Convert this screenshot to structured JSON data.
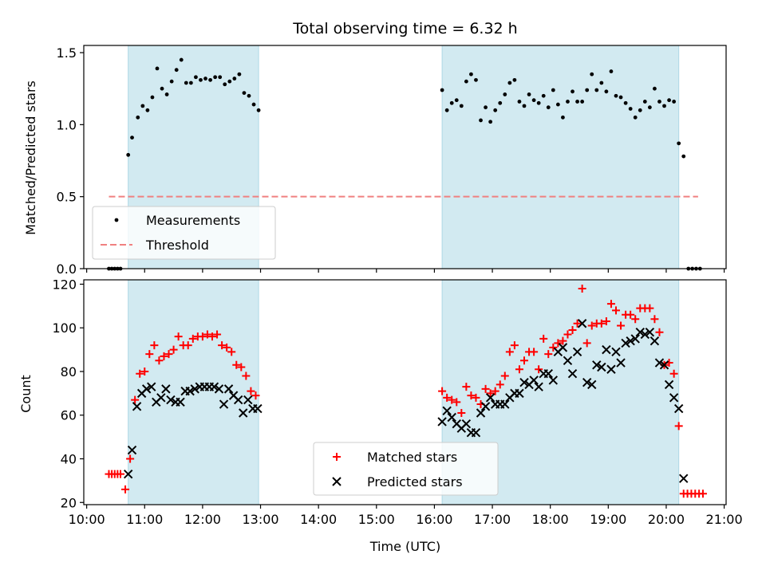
{
  "title": "Total observing time = 6.32 h",
  "colors": {
    "shade": "#add8e6",
    "measurement": "#000000",
    "threshold": "#f08080",
    "matched": "#ff0000",
    "predicted": "#000000"
  },
  "chart_data": [
    {
      "type": "scatter",
      "ylabel": "Matched/Predicted stars",
      "ylim": [
        0,
        1.55
      ],
      "yticks": [
        "0.0",
        "0.5",
        "1.0",
        "1.5"
      ],
      "legend": {
        "placement": "lower-left",
        "entries": [
          "Measurements",
          "Threshold"
        ]
      },
      "shaded_intervals": [
        [
          "10:43",
          "12:58"
        ],
        [
          "16:08",
          "20:13"
        ]
      ],
      "threshold": {
        "name": "Threshold",
        "y": 0.5,
        "x_range": [
          "10:23",
          "20:33"
        ]
      },
      "series": [
        {
          "name": "Measurements",
          "marker": "dot",
          "points": [
            [
              "10:23",
              0
            ],
            [
              "10:26",
              0
            ],
            [
              "10:29",
              0
            ],
            [
              "10:32",
              0
            ],
            [
              "10:35",
              0
            ],
            [
              "10:43",
              0.79
            ],
            [
              "10:47",
              0.91
            ],
            [
              "10:53",
              1.05
            ],
            [
              "10:58",
              1.13
            ],
            [
              "11:03",
              1.1
            ],
            [
              "11:08",
              1.19
            ],
            [
              "11:13",
              1.39
            ],
            [
              "11:18",
              1.25
            ],
            [
              "11:23",
              1.21
            ],
            [
              "11:28",
              1.3
            ],
            [
              "11:33",
              1.38
            ],
            [
              "11:38",
              1.45
            ],
            [
              "11:43",
              1.29
            ],
            [
              "11:48",
              1.29
            ],
            [
              "11:53",
              1.33
            ],
            [
              "11:58",
              1.31
            ],
            [
              "12:03",
              1.32
            ],
            [
              "12:08",
              1.31
            ],
            [
              "12:13",
              1.33
            ],
            [
              "12:18",
              1.33
            ],
            [
              "12:23",
              1.28
            ],
            [
              "12:28",
              1.3
            ],
            [
              "12:33",
              1.32
            ],
            [
              "12:38",
              1.35
            ],
            [
              "12:43",
              1.22
            ],
            [
              "12:48",
              1.2
            ],
            [
              "12:53",
              1.14
            ],
            [
              "12:58",
              1.1
            ],
            [
              "16:08",
              1.24
            ],
            [
              "16:13",
              1.1
            ],
            [
              "16:18",
              1.15
            ],
            [
              "16:23",
              1.17
            ],
            [
              "16:28",
              1.13
            ],
            [
              "16:33",
              1.3
            ],
            [
              "16:38",
              1.35
            ],
            [
              "16:43",
              1.31
            ],
            [
              "16:48",
              1.03
            ],
            [
              "16:53",
              1.12
            ],
            [
              "16:58",
              1.02
            ],
            [
              "17:03",
              1.1
            ],
            [
              "17:08",
              1.15
            ],
            [
              "17:13",
              1.21
            ],
            [
              "17:18",
              1.29
            ],
            [
              "17:23",
              1.31
            ],
            [
              "17:28",
              1.16
            ],
            [
              "17:33",
              1.13
            ],
            [
              "17:38",
              1.21
            ],
            [
              "17:43",
              1.17
            ],
            [
              "17:48",
              1.15
            ],
            [
              "17:53",
              1.2
            ],
            [
              "17:58",
              1.12
            ],
            [
              "18:03",
              1.24
            ],
            [
              "18:08",
              1.14
            ],
            [
              "18:13",
              1.05
            ],
            [
              "18:18",
              1.16
            ],
            [
              "18:23",
              1.23
            ],
            [
              "18:28",
              1.16
            ],
            [
              "18:33",
              1.16
            ],
            [
              "18:38",
              1.24
            ],
            [
              "18:43",
              1.35
            ],
            [
              "18:48",
              1.24
            ],
            [
              "18:53",
              1.29
            ],
            [
              "18:58",
              1.23
            ],
            [
              "19:03",
              1.37
            ],
            [
              "19:08",
              1.2
            ],
            [
              "19:13",
              1.19
            ],
            [
              "19:18",
              1.15
            ],
            [
              "19:23",
              1.11
            ],
            [
              "19:28",
              1.05
            ],
            [
              "19:33",
              1.1
            ],
            [
              "19:38",
              1.16
            ],
            [
              "19:43",
              1.12
            ],
            [
              "19:48",
              1.25
            ],
            [
              "19:53",
              1.16
            ],
            [
              "19:58",
              1.13
            ],
            [
              "20:03",
              1.17
            ],
            [
              "20:08",
              1.16
            ],
            [
              "20:13",
              0.87
            ],
            [
              "20:18",
              0.78
            ],
            [
              "20:23",
              0
            ],
            [
              "20:27",
              0
            ],
            [
              "20:31",
              0
            ],
            [
              "20:35",
              0
            ]
          ]
        }
      ]
    },
    {
      "type": "scatter",
      "xlabel": "Time (UTC)",
      "ylabel": "Count",
      "ylim": [
        19,
        122
      ],
      "yticks": [
        "20",
        "40",
        "60",
        "80",
        "100",
        "120"
      ],
      "xlim": [
        "09:57",
        "21:02"
      ],
      "xticks": [
        "10:00",
        "11:00",
        "12:00",
        "13:00",
        "14:00",
        "15:00",
        "16:00",
        "17:00",
        "18:00",
        "19:00",
        "20:00",
        "21:00"
      ],
      "legend": {
        "placement": "lower-center",
        "entries": [
          "Matched stars",
          "Predicted stars"
        ]
      },
      "shaded_intervals": [
        [
          "10:43",
          "12:58"
        ],
        [
          "16:08",
          "20:13"
        ]
      ],
      "series": [
        {
          "name": "Matched stars",
          "marker": "plus",
          "points": [
            [
              "10:23",
              33
            ],
            [
              "10:26",
              33
            ],
            [
              "10:29",
              33
            ],
            [
              "10:32",
              33
            ],
            [
              "10:35",
              33
            ],
            [
              "10:40",
              26
            ],
            [
              "10:45",
              40
            ],
            [
              "10:50",
              67
            ],
            [
              "10:55",
              79
            ],
            [
              "11:00",
              80
            ],
            [
              "11:05",
              88
            ],
            [
              "11:10",
              92
            ],
            [
              "11:15",
              85
            ],
            [
              "11:20",
              87
            ],
            [
              "11:25",
              88
            ],
            [
              "11:30",
              90
            ],
            [
              "11:35",
              96
            ],
            [
              "11:40",
              92
            ],
            [
              "11:45",
              92
            ],
            [
              "11:50",
              95
            ],
            [
              "11:55",
              96
            ],
            [
              "12:00",
              96
            ],
            [
              "12:05",
              97
            ],
            [
              "12:10",
              96
            ],
            [
              "12:15",
              97
            ],
            [
              "12:20",
              92
            ],
            [
              "12:25",
              91
            ],
            [
              "12:30",
              89
            ],
            [
              "12:35",
              83
            ],
            [
              "12:40",
              82
            ],
            [
              "12:45",
              78
            ],
            [
              "12:50",
              71
            ],
            [
              "12:55",
              69
            ],
            [
              "16:08",
              71
            ],
            [
              "16:13",
              68
            ],
            [
              "16:18",
              67
            ],
            [
              "16:23",
              66
            ],
            [
              "16:28",
              61
            ],
            [
              "16:33",
              73
            ],
            [
              "16:38",
              69
            ],
            [
              "16:43",
              68
            ],
            [
              "16:48",
              65
            ],
            [
              "16:53",
              72
            ],
            [
              "16:58",
              70
            ],
            [
              "17:03",
              71
            ],
            [
              "17:08",
              74
            ],
            [
              "17:13",
              78
            ],
            [
              "17:18",
              89
            ],
            [
              "17:23",
              92
            ],
            [
              "17:28",
              81
            ],
            [
              "17:33",
              85
            ],
            [
              "17:38",
              89
            ],
            [
              "17:43",
              89
            ],
            [
              "17:48",
              81
            ],
            [
              "17:53",
              95
            ],
            [
              "17:58",
              88
            ],
            [
              "18:03",
              91
            ],
            [
              "18:08",
              93
            ],
            [
              "18:13",
              94
            ],
            [
              "18:18",
              97
            ],
            [
              "18:23",
              99
            ],
            [
              "18:28",
              102
            ],
            [
              "18:33",
              118
            ],
            [
              "18:38",
              93
            ],
            [
              "18:43",
              101
            ],
            [
              "18:48",
              102
            ],
            [
              "18:53",
              102
            ],
            [
              "18:58",
              103
            ],
            [
              "19:03",
              111
            ],
            [
              "19:08",
              108
            ],
            [
              "19:13",
              101
            ],
            [
              "19:18",
              106
            ],
            [
              "19:23",
              106
            ],
            [
              "19:28",
              104
            ],
            [
              "19:33",
              109
            ],
            [
              "19:38",
              109
            ],
            [
              "19:43",
              109
            ],
            [
              "19:48",
              104
            ],
            [
              "19:53",
              98
            ],
            [
              "19:58",
              83
            ],
            [
              "20:03",
              84
            ],
            [
              "20:08",
              79
            ],
            [
              "20:13",
              55
            ],
            [
              "20:18",
              24
            ],
            [
              "20:22",
              24
            ],
            [
              "20:26",
              24
            ],
            [
              "20:30",
              24
            ],
            [
              "20:34",
              24
            ],
            [
              "20:38",
              24
            ]
          ]
        },
        {
          "name": "Predicted stars",
          "marker": "x",
          "points": [
            [
              "10:43",
              33
            ],
            [
              "10:47",
              44
            ],
            [
              "10:52",
              64
            ],
            [
              "10:57",
              70
            ],
            [
              "11:02",
              72
            ],
            [
              "11:07",
              73
            ],
            [
              "11:12",
              66
            ],
            [
              "11:17",
              68
            ],
            [
              "11:22",
              72
            ],
            [
              "11:27",
              67
            ],
            [
              "11:32",
              66
            ],
            [
              "11:37",
              66
            ],
            [
              "11:42",
              71
            ],
            [
              "11:47",
              71
            ],
            [
              "11:52",
              72
            ],
            [
              "11:57",
              73
            ],
            [
              "12:02",
              73
            ],
            [
              "12:07",
              73
            ],
            [
              "12:12",
              73
            ],
            [
              "12:17",
              72
            ],
            [
              "12:22",
              65
            ],
            [
              "12:27",
              72
            ],
            [
              "12:32",
              69
            ],
            [
              "12:37",
              67
            ],
            [
              "12:42",
              61
            ],
            [
              "12:47",
              67
            ],
            [
              "12:52",
              63
            ],
            [
              "12:57",
              63
            ],
            [
              "16:08",
              57
            ],
            [
              "16:13",
              62
            ],
            [
              "16:18",
              59
            ],
            [
              "16:23",
              56
            ],
            [
              "16:28",
              54
            ],
            [
              "16:33",
              56
            ],
            [
              "16:38",
              52
            ],
            [
              "16:43",
              52
            ],
            [
              "16:48",
              61
            ],
            [
              "16:53",
              64
            ],
            [
              "16:58",
              68
            ],
            [
              "17:03",
              65
            ],
            [
              "17:08",
              65
            ],
            [
              "17:13",
              65
            ],
            [
              "17:18",
              68
            ],
            [
              "17:23",
              70
            ],
            [
              "17:28",
              70
            ],
            [
              "17:33",
              75
            ],
            [
              "17:38",
              74
            ],
            [
              "17:43",
              76
            ],
            [
              "17:48",
              73
            ],
            [
              "17:53",
              79
            ],
            [
              "17:58",
              79
            ],
            [
              "18:03",
              76
            ],
            [
              "18:08",
              89
            ],
            [
              "18:13",
              91
            ],
            [
              "18:18",
              85
            ],
            [
              "18:23",
              79
            ],
            [
              "18:28",
              89
            ],
            [
              "18:33",
              102
            ],
            [
              "18:38",
              75
            ],
            [
              "18:43",
              74
            ],
            [
              "18:48",
              83
            ],
            [
              "18:53",
              82
            ],
            [
              "18:58",
              90
            ],
            [
              "19:03",
              81
            ],
            [
              "19:08",
              89
            ],
            [
              "19:13",
              84
            ],
            [
              "19:18",
              93
            ],
            [
              "19:23",
              94
            ],
            [
              "19:28",
              95
            ],
            [
              "19:33",
              98
            ],
            [
              "19:38",
              97
            ],
            [
              "19:43",
              98
            ],
            [
              "19:48",
              94
            ],
            [
              "19:53",
              84
            ],
            [
              "19:58",
              83
            ],
            [
              "20:03",
              74
            ],
            [
              "20:08",
              68
            ],
            [
              "20:13",
              63
            ],
            [
              "20:18",
              31
            ]
          ]
        }
      ]
    }
  ]
}
